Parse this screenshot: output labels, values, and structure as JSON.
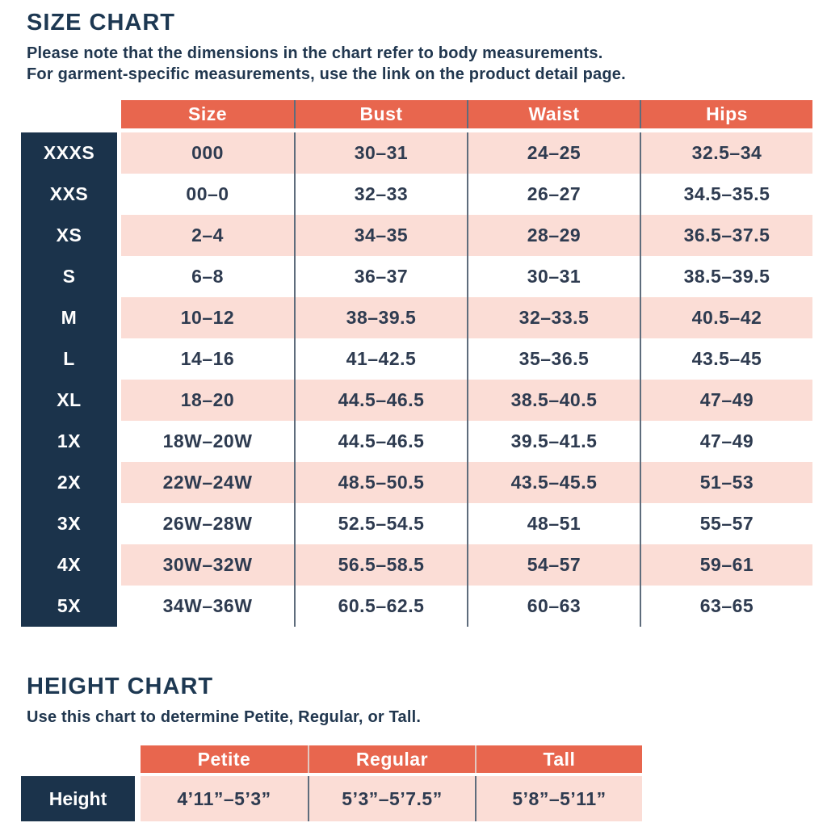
{
  "size_chart": {
    "title": "SIZE CHART",
    "subtitle_line1": "Please note that the dimensions in the chart refer to body measurements.",
    "subtitle_line2": "For garment-specific measurements, use the link on the product detail page.",
    "columns": [
      "Size",
      "Bust",
      "Waist",
      "Hips"
    ],
    "rows": [
      {
        "label": "XXXS",
        "cells": [
          "000",
          "30–31",
          "24–25",
          "32.5–34"
        ]
      },
      {
        "label": "XXS",
        "cells": [
          "00–0",
          "32–33",
          "26–27",
          "34.5–35.5"
        ]
      },
      {
        "label": "XS",
        "cells": [
          "2–4",
          "34–35",
          "28–29",
          "36.5–37.5"
        ]
      },
      {
        "label": "S",
        "cells": [
          "6–8",
          "36–37",
          "30–31",
          "38.5–39.5"
        ]
      },
      {
        "label": "M",
        "cells": [
          "10–12",
          "38–39.5",
          "32–33.5",
          "40.5–42"
        ]
      },
      {
        "label": "L",
        "cells": [
          "14–16",
          "41–42.5",
          "35–36.5",
          "43.5–45"
        ]
      },
      {
        "label": "XL",
        "cells": [
          "18–20",
          "44.5–46.5",
          "38.5–40.5",
          "47–49"
        ]
      },
      {
        "label": "1X",
        "cells": [
          "18W–20W",
          "44.5–46.5",
          "39.5–41.5",
          "47–49"
        ]
      },
      {
        "label": "2X",
        "cells": [
          "22W–24W",
          "48.5–50.5",
          "43.5–45.5",
          "51–53"
        ]
      },
      {
        "label": "3X",
        "cells": [
          "26W–28W",
          "52.5–54.5",
          "48–51",
          "55–57"
        ]
      },
      {
        "label": "4X",
        "cells": [
          "30W–32W",
          "56.5–58.5",
          "54–57",
          "59–61"
        ]
      },
      {
        "label": "5X",
        "cells": [
          "34W–36W",
          "60.5–62.5",
          "60–63",
          "63–65"
        ]
      }
    ]
  },
  "height_chart": {
    "title": "HEIGHT CHART",
    "subtitle": "Use this chart to determine Petite, Regular, or Tall.",
    "columns": [
      "Petite",
      "Regular",
      "Tall"
    ],
    "row_label": "Height",
    "values": [
      "4’11”–5’3”",
      "5’3”–5’7.5”",
      "5’8”–5’11”"
    ]
  },
  "colors": {
    "header_bg": "#E8664E",
    "row_label_bg": "#1B334B",
    "row_alt_bg": "#FBDDD6",
    "heading_text": "#1D3852",
    "cell_text": "#2E3B50",
    "divider": "#5E6C7C"
  }
}
